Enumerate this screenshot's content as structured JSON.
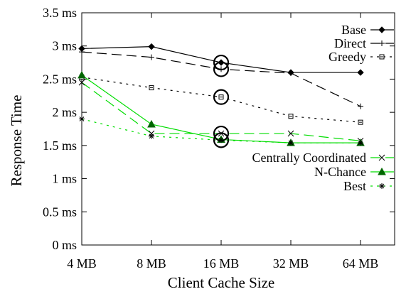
{
  "chart_data": {
    "type": "line",
    "xlabel": "Client Cache Size",
    "ylabel": "Response Time",
    "categories": [
      "4 MB",
      "8 MB",
      "16 MB",
      "32 MB",
      "64 MB"
    ],
    "yticks": [
      "0 ms",
      "0.5 ms",
      "1 ms",
      "1.5 ms",
      "2 ms",
      "2.5 ms",
      "3 ms",
      "3.5 ms"
    ],
    "ylim": [
      0,
      3.5
    ],
    "grid": false,
    "legend_position": "right",
    "highlighted_category": "16 MB",
    "series": [
      {
        "name": "Base",
        "values": [
          2.96,
          2.99,
          2.75,
          2.6,
          2.6
        ],
        "color": "#000000",
        "dash": "solid",
        "marker": "diamond"
      },
      {
        "name": "Direct",
        "values": [
          2.91,
          2.83,
          2.65,
          2.59,
          2.09
        ],
        "color": "#000000",
        "dash": "long-dash",
        "marker": "plus"
      },
      {
        "name": "Greedy",
        "values": [
          2.53,
          2.37,
          2.23,
          1.94,
          1.85
        ],
        "color": "#000000",
        "dash": "dotted",
        "marker": "square"
      },
      {
        "name": "Centrally Coordinated",
        "values": [
          2.45,
          1.68,
          1.68,
          1.68,
          1.57
        ],
        "color": "#00dd00",
        "dash": "long-dash",
        "marker": "cross"
      },
      {
        "name": "N-Chance",
        "values": [
          2.56,
          1.82,
          1.59,
          1.54,
          1.54
        ],
        "color": "#00dd00",
        "dash": "solid",
        "marker": "triangle"
      },
      {
        "name": "Best",
        "values": [
          1.9,
          1.64,
          1.58,
          1.54,
          1.54
        ],
        "color": "#00dd00",
        "dash": "dotted",
        "marker": "star"
      }
    ]
  }
}
